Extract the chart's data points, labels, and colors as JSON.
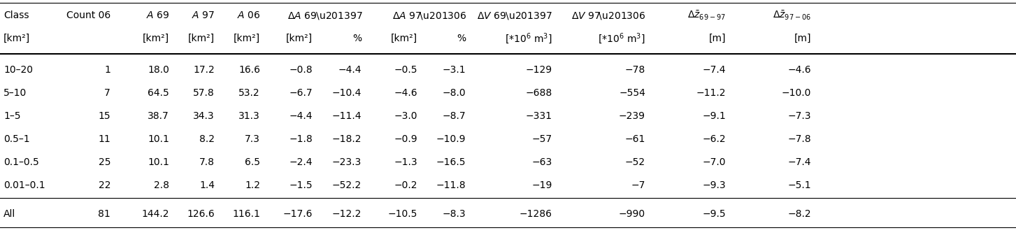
{
  "col_headers_row1": [
    "Class",
    "Count 06",
    "A 69",
    "A 97",
    "A 06",
    "ΔA 69–97",
    "",
    "ΔA 97–06",
    "",
    "ΔV 69–97",
    "ΔV 97–06",
    "Δ̅z₆₉₋₉₇",
    "Δ̅z₉₇₋₀₆"
  ],
  "col_headers_row2": [
    "[km²]",
    "",
    "[km²]",
    "[km²]",
    "[km²]",
    "[km²]",
    "%",
    "[km²]",
    "%",
    "[*10⁶ m³]",
    "[*10⁶ m³]",
    "[m]",
    "[m]"
  ],
  "rows": [
    [
      "10–20",
      "1",
      "18.0",
      "17.2",
      "16.6",
      "−0.8",
      "−4.4",
      "−0.5",
      "−3.1",
      "−129",
      "−78",
      "−7.4",
      "−4.6"
    ],
    [
      "5–10",
      "7",
      "64.5",
      "57.8",
      "53.2",
      "−6.7",
      "−10.4",
      "−4.6",
      "−8.0",
      "−688",
      "−554",
      "−11.2",
      "−10.0"
    ],
    [
      "1–5",
      "15",
      "38.7",
      "34.3",
      "31.3",
      "−4.4",
      "−11.4",
      "−3.0",
      "−8.7",
      "−331",
      "−239",
      "−9.1",
      "−7.3"
    ],
    [
      "0.5–1",
      "11",
      "10.1",
      "8.2",
      "7.3",
      "−1.8",
      "−18.2",
      "−0.9",
      "−10.9",
      "−57",
      "−61",
      "−6.2",
      "−7.8"
    ],
    [
      "0.1–0.5",
      "25",
      "10.1",
      "7.8",
      "6.5",
      "−2.4",
      "−23.3",
      "−1.3",
      "−16.5",
      "−63",
      "−52",
      "−7.0",
      "−7.4"
    ],
    [
      "0.01–0.1",
      "22",
      "2.8",
      "1.4",
      "1.2",
      "−1.5",
      "−52.2",
      "−0.2",
      "−11.8",
      "−19",
      "−7",
      "−9.3",
      "−5.1"
    ],
    [
      "All",
      "81",
      "144.2",
      "126.6",
      "116.1",
      "−17.6",
      "−12.2",
      "−10.5",
      "−8.3",
      "−1286",
      "−990",
      "−9.5",
      "−8.2"
    ]
  ],
  "figsize": [
    14.53,
    3.56
  ],
  "dpi": 100,
  "bg_color": "#ffffff",
  "fontsize": 10.0
}
